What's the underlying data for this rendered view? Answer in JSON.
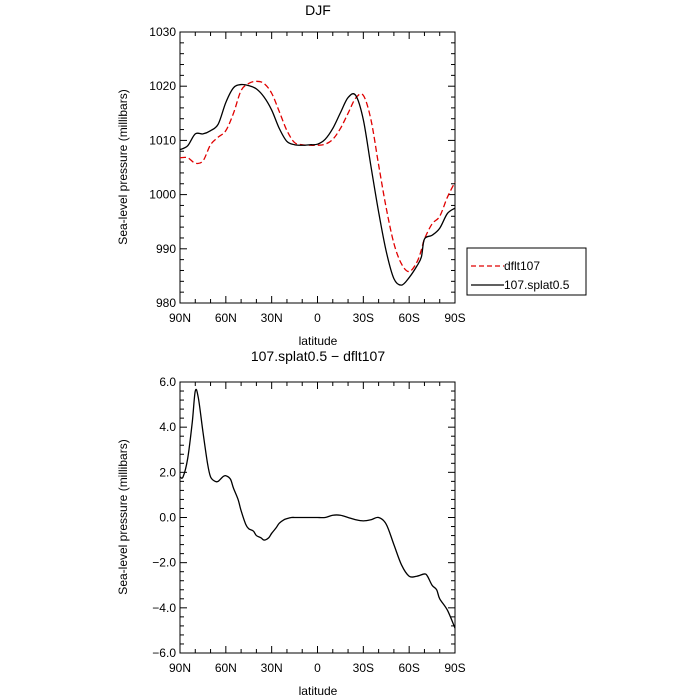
{
  "chart_data": [
    {
      "type": "line",
      "title": "DJF",
      "xlabel": "latitude",
      "ylabel": "Sea-level pressure (millibars)",
      "xlim": [
        90,
        -90
      ],
      "ylim": [
        980,
        1030
      ],
      "x_ticks": [
        90,
        60,
        30,
        0,
        -30,
        -60,
        -90
      ],
      "x_tick_labels": [
        "90N",
        "60N",
        "30N",
        "0",
        "30S",
        "60S",
        "90S"
      ],
      "y_ticks": [
        980,
        990,
        1000,
        1010,
        1020,
        1030
      ],
      "y_tick_labels": [
        "980",
        "990",
        "1000",
        "1010",
        "1020",
        "1030"
      ],
      "legend": {
        "placement": "right",
        "entries": [
          "dflt107",
          "107.splat0.5"
        ]
      },
      "series": [
        {
          "name": "dflt107",
          "color": "#e00000",
          "dash": "dashed",
          "x": [
            90,
            85,
            80,
            75,
            70,
            65,
            60,
            55,
            50,
            45,
            40,
            35,
            30,
            25,
            20,
            15,
            10,
            5,
            0,
            -5,
            -10,
            -15,
            -20,
            -25,
            -30,
            -35,
            -40,
            -45,
            -50,
            -55,
            -60,
            -65,
            -68,
            -70,
            -75,
            -80,
            -85,
            -90
          ],
          "y": [
            1006.8,
            1006.8,
            1005.8,
            1006.2,
            1009.2,
            1010.6,
            1011.8,
            1015.0,
            1019.2,
            1020.5,
            1020.9,
            1020.5,
            1018.7,
            1015.3,
            1011.8,
            1009.6,
            1009.2,
            1009.1,
            1009.1,
            1009.3,
            1010.2,
            1012.2,
            1015.0,
            1017.8,
            1018.3,
            1013.8,
            1005.5,
            997.5,
            991.0,
            987.2,
            985.8,
            987.5,
            989.8,
            991.8,
            994.6,
            996.0,
            999.5,
            1002.3
          ]
        },
        {
          "name": "107.splat0.5",
          "color": "#000000",
          "dash": "solid",
          "x": [
            90,
            85,
            80,
            75,
            70,
            65,
            60,
            55,
            50,
            45,
            40,
            35,
            30,
            25,
            20,
            15,
            10,
            5,
            0,
            -5,
            -10,
            -15,
            -20,
            -25,
            -30,
            -35,
            -40,
            -45,
            -50,
            -55,
            -60,
            -65,
            -68,
            -70,
            -75,
            -80,
            -85,
            -90
          ],
          "y": [
            1008.3,
            1009.0,
            1011.2,
            1011.2,
            1011.8,
            1013.0,
            1017.0,
            1019.7,
            1020.3,
            1020.1,
            1019.5,
            1018.0,
            1015.6,
            1012.2,
            1009.8,
            1009.2,
            1009.1,
            1009.2,
            1009.3,
            1010.2,
            1012.2,
            1015.1,
            1017.9,
            1018.3,
            1013.8,
            1005.2,
            996.8,
            989.5,
            984.5,
            983.3,
            984.7,
            986.8,
            988.5,
            991.8,
            992.5,
            993.8,
            996.5,
            997.5
          ]
        }
      ]
    },
    {
      "type": "line",
      "title": "107.splat0.5 − dflt107",
      "xlabel": "latitude",
      "ylabel": "Sea-level pressure (millibars)",
      "xlim": [
        90,
        -90
      ],
      "ylim": [
        -6.0,
        6.0
      ],
      "x_ticks": [
        90,
        60,
        30,
        0,
        -30,
        -60,
        -90
      ],
      "x_tick_labels": [
        "90N",
        "60N",
        "30N",
        "0",
        "30S",
        "60S",
        "90S"
      ],
      "y_ticks": [
        -6,
        -4,
        -2,
        0,
        2,
        4,
        6
      ],
      "y_tick_labels": [
        "−6.0",
        "−4.0",
        "−2.0",
        "0.0",
        "2.0",
        "4.0",
        "6.0"
      ],
      "series": [
        {
          "color": "#000000",
          "dash": "solid",
          "x": [
            90,
            88,
            85,
            82,
            80,
            78,
            75,
            72,
            70,
            67,
            65,
            62,
            60,
            57,
            55,
            52,
            50,
            47,
            45,
            42,
            40,
            37,
            35,
            32,
            30,
            27,
            25,
            22,
            20,
            17,
            15,
            12,
            10,
            7,
            5,
            2,
            0,
            -5,
            -10,
            -15,
            -20,
            -25,
            -30,
            -35,
            -40,
            -45,
            -50,
            -55,
            -60,
            -65,
            -70,
            -72,
            -75,
            -78,
            -80,
            -85,
            -90
          ],
          "y": [
            1.8,
            1.8,
            2.6,
            4.2,
            5.6,
            5.3,
            3.8,
            2.4,
            1.8,
            1.6,
            1.6,
            1.8,
            1.85,
            1.7,
            1.3,
            0.8,
            0.3,
            -0.3,
            -0.5,
            -0.6,
            -0.8,
            -0.9,
            -1.0,
            -0.9,
            -0.7,
            -0.45,
            -0.25,
            -0.1,
            -0.05,
            0.0,
            0.0,
            0.0,
            0.0,
            0.0,
            0.0,
            0.0,
            0.0,
            0.0,
            0.1,
            0.1,
            0.0,
            -0.1,
            -0.15,
            -0.1,
            0.0,
            -0.3,
            -1.2,
            -2.1,
            -2.6,
            -2.6,
            -2.5,
            -2.6,
            -3.0,
            -3.2,
            -3.6,
            -4.1,
            -4.9
          ]
        }
      ]
    }
  ]
}
